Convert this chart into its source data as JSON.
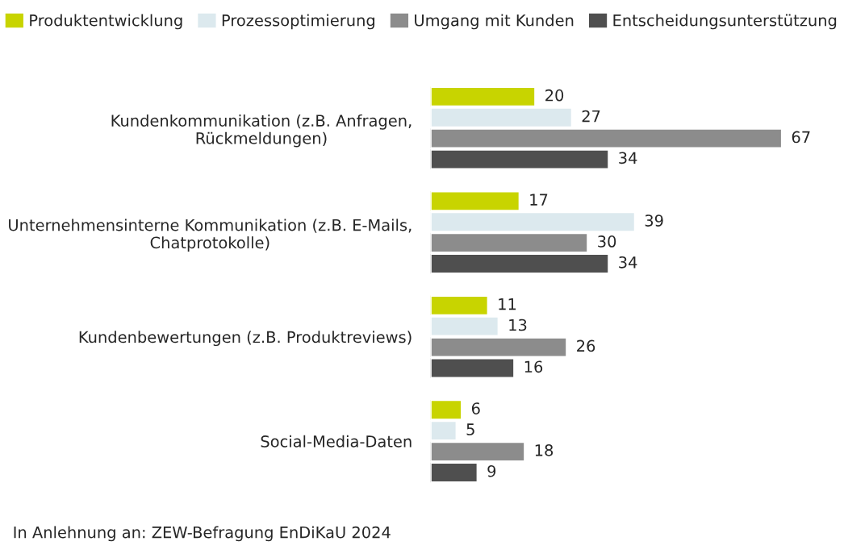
{
  "chart_data": {
    "type": "bar",
    "orientation": "horizontal",
    "categories": [
      "Kundenkommunikation (z.B. Anfragen,\nRückmeldungen)",
      "Unternehmensinterne Kommunikation (z.B. E-Mails,\nChatprotokolle)",
      "Kundenbewertungen (z.B. Produktreviews)",
      "Social-Media-Daten"
    ],
    "series": [
      {
        "name": "Produktentwicklung",
        "color": "#c8d400",
        "values": [
          20,
          17,
          11,
          6
        ]
      },
      {
        "name": "Prozessoptimierung",
        "color": "#dce9ee",
        "values": [
          27,
          39,
          13,
          5
        ]
      },
      {
        "name": "Umgang mit Kunden",
        "color": "#8c8c8c",
        "values": [
          67,
          30,
          26,
          18
        ]
      },
      {
        "name": "Entscheidungsunterstützung",
        "color": "#4f4f4f",
        "values": [
          34,
          34,
          16,
          9
        ]
      }
    ],
    "data_labels": true,
    "legend": "top",
    "grid": false,
    "tick_labels": "y",
    "annotations": [
      "In Anlehnung an: ZEW-Befragung EnDiKaU 2024"
    ]
  }
}
